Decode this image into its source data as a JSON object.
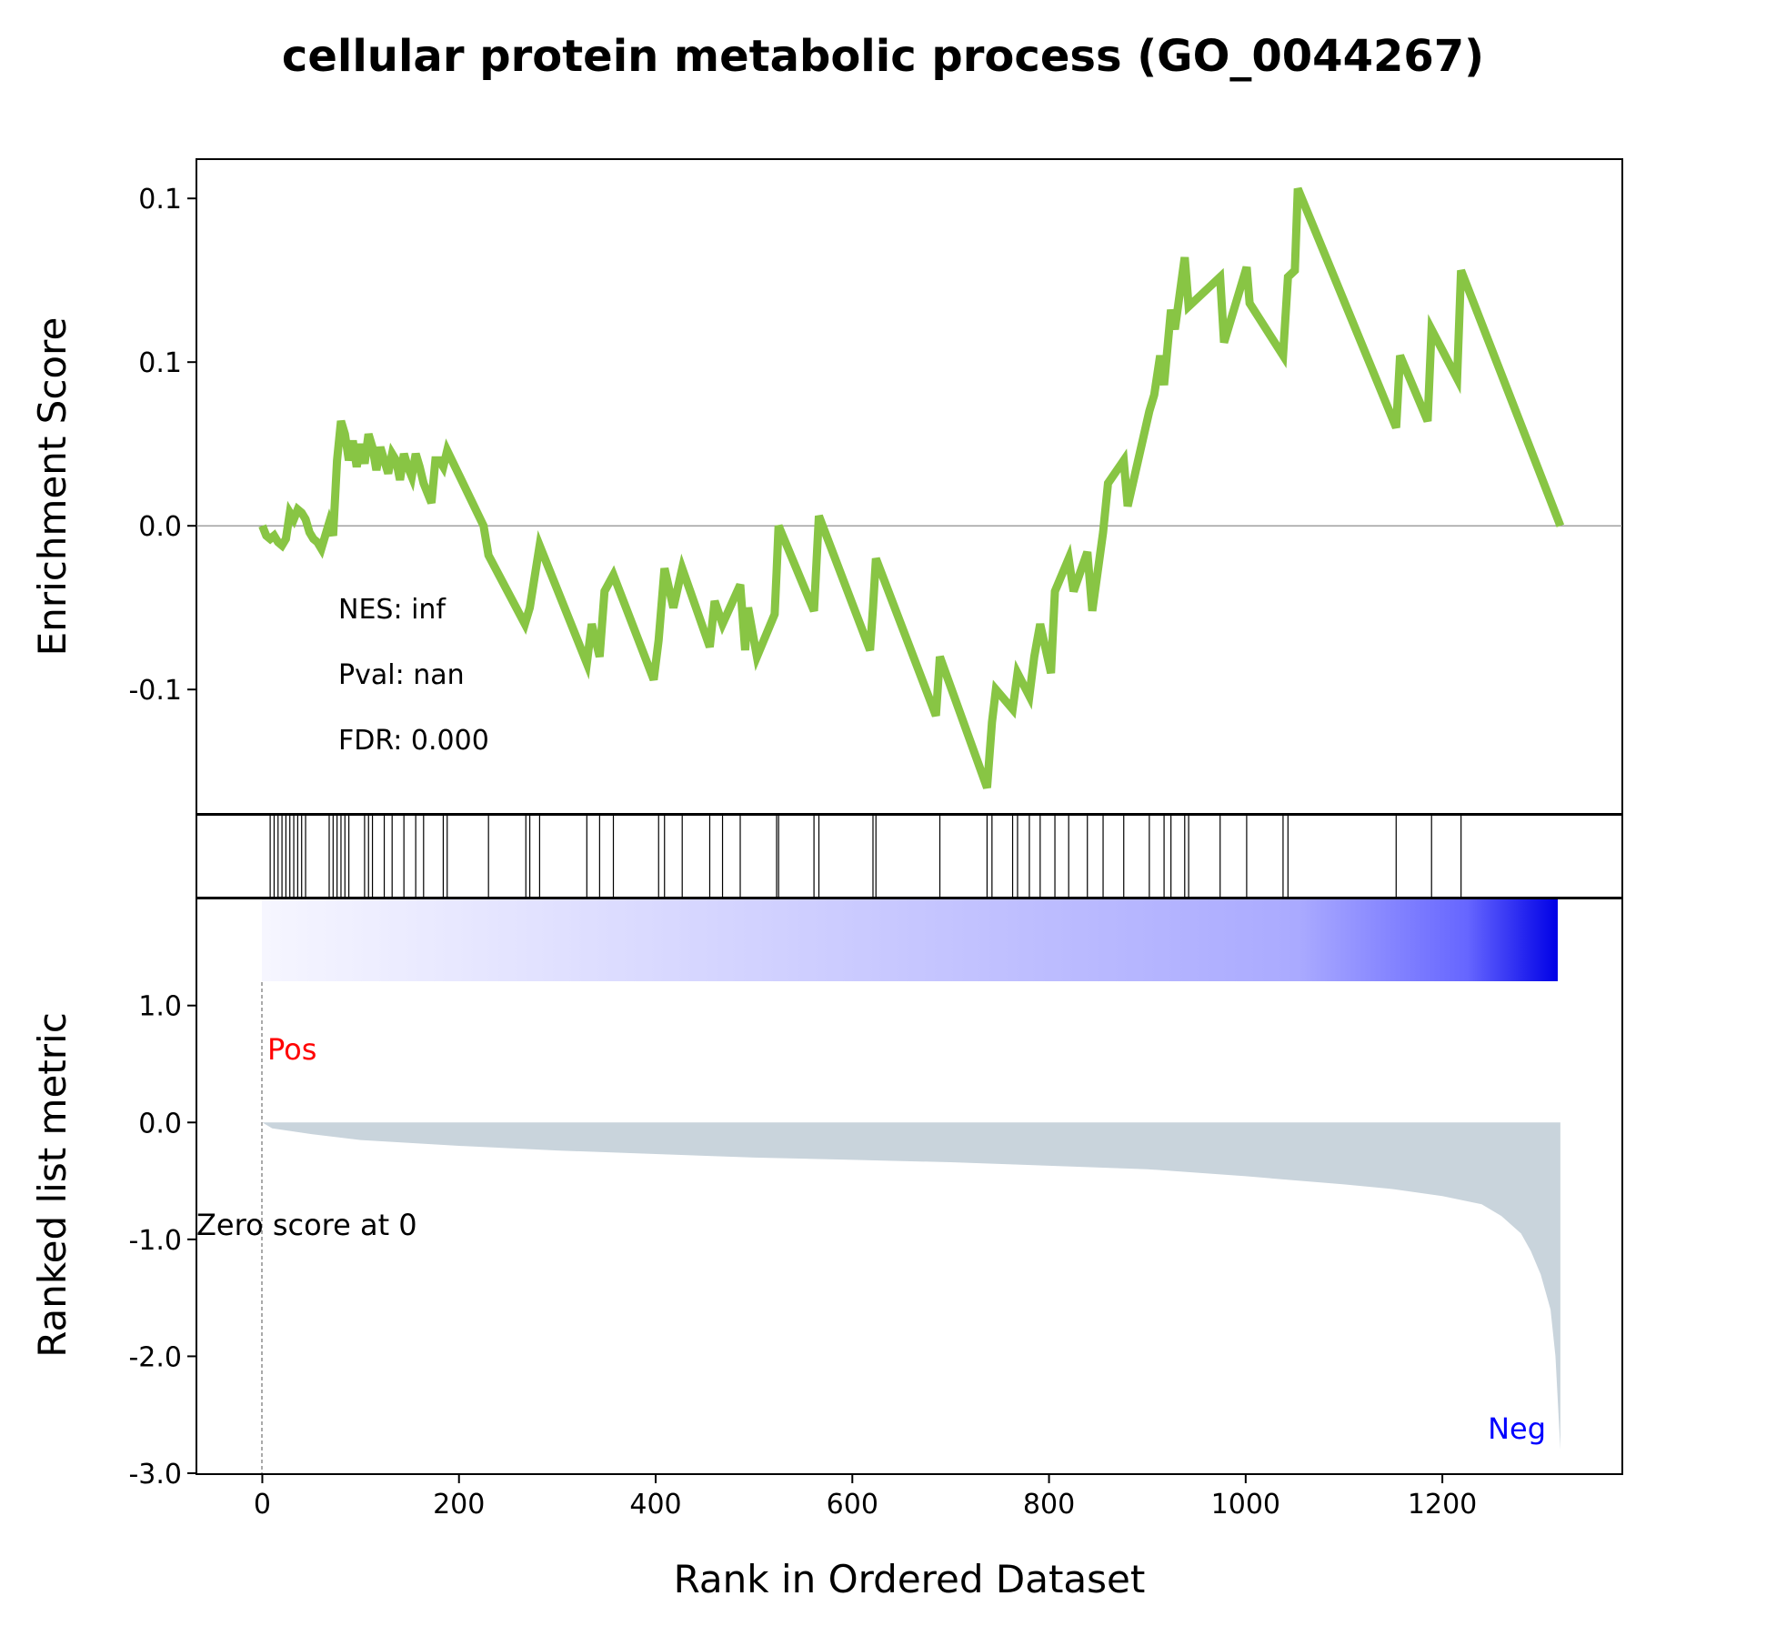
{
  "title": "cellular protein metabolic process (GO_0044267)",
  "colors": {
    "es_line": "#88c544",
    "ranked_fill": "#c9d4dc",
    "pos_label": "#ff0000",
    "neg_label": "#0000ff",
    "zero_line": "#808080",
    "gradient_start": "#f6f6ff",
    "gradient_mid": "#aaaaff",
    "gradient_end": "#0000e6"
  },
  "stats": {
    "nes": "NES: inf",
    "pval": "Pval: nan",
    "fdr": "FDR: 0.000"
  },
  "labels": {
    "pos": "Pos",
    "neg": "Neg",
    "zero_score": "Zero score at 0"
  },
  "chart_data": [
    {
      "type": "line",
      "name": "enrichment-score",
      "ylabel": "Enrichment Score",
      "y_ticks": [
        {
          "value": 0.1,
          "label": "0.1"
        },
        {
          "value": 0.05,
          "label": "0.1"
        },
        {
          "value": 0.0,
          "label": "0.0"
        },
        {
          "value": -0.05,
          "label": "-0.1"
        }
      ],
      "xlim": [
        -67,
        1383
      ],
      "ylim": [
        -0.088,
        0.112
      ],
      "x": [
        0,
        4,
        8,
        12,
        16,
        20,
        24,
        28,
        32,
        36,
        40,
        44,
        48,
        52,
        56,
        60,
        64,
        68,
        72,
        76,
        80,
        84,
        88,
        92,
        96,
        100,
        104,
        108,
        112,
        116,
        120,
        124,
        128,
        132,
        136,
        140,
        144,
        148,
        152,
        156,
        160,
        164,
        168,
        172,
        176,
        180,
        184,
        188,
        225,
        230,
        267,
        272,
        282,
        330,
        335,
        343,
        348,
        357,
        398,
        403,
        409,
        418,
        427,
        455,
        460,
        468,
        486,
        491,
        494,
        503,
        521,
        523,
        525,
        561,
        566,
        618,
        621,
        624,
        685,
        689,
        737,
        742,
        746,
        763,
        768,
        780,
        785,
        791,
        802,
        806,
        820,
        825,
        839,
        844,
        855,
        860,
        876,
        880,
        902,
        907,
        913,
        917,
        924,
        928,
        938,
        942,
        974,
        978,
        1001,
        1004,
        1038,
        1043,
        1050,
        1053,
        1153,
        1157,
        1185,
        1189,
        1215,
        1219,
        1320
      ],
      "y": [
        0.0,
        -0.003,
        -0.004,
        -0.003,
        -0.005,
        -0.006,
        -0.004,
        0.004,
        0.002,
        0.005,
        0.004,
        0.002,
        -0.002,
        -0.004,
        -0.005,
        -0.007,
        -0.003,
        0.001,
        -0.003,
        0.02,
        0.032,
        0.028,
        0.02,
        0.026,
        0.018,
        0.025,
        0.019,
        0.028,
        0.024,
        0.017,
        0.024,
        0.02,
        0.016,
        0.022,
        0.02,
        0.014,
        0.022,
        0.018,
        0.015,
        0.022,
        0.018,
        0.013,
        0.01,
        0.007,
        0.02,
        0.02,
        0.018,
        0.023,
        0.0,
        -0.009,
        -0.03,
        -0.025,
        -0.006,
        -0.042,
        -0.03,
        -0.04,
        -0.02,
        -0.015,
        -0.047,
        -0.035,
        -0.013,
        -0.025,
        -0.013,
        -0.037,
        -0.023,
        -0.03,
        -0.018,
        -0.038,
        -0.025,
        -0.04,
        -0.027,
        -0.014,
        0.0,
        -0.026,
        0.003,
        -0.038,
        -0.025,
        -0.01,
        -0.058,
        -0.04,
        -0.08,
        -0.06,
        -0.05,
        -0.056,
        -0.045,
        -0.052,
        -0.04,
        -0.03,
        -0.045,
        -0.02,
        -0.01,
        -0.02,
        -0.008,
        -0.026,
        -0.002,
        0.013,
        0.02,
        0.006,
        0.035,
        0.04,
        0.052,
        0.043,
        0.066,
        0.06,
        0.082,
        0.067,
        0.076,
        0.056,
        0.079,
        0.068,
        0.052,
        0.076,
        0.078,
        0.103,
        0.03,
        0.052,
        0.032,
        0.06,
        0.045,
        0.078,
        0.0
      ]
    },
    {
      "type": "event-lines",
      "name": "hit-positions",
      "x": [
        8,
        12,
        16,
        20,
        24,
        28,
        32,
        36,
        40,
        44,
        68,
        72,
        76,
        80,
        84,
        88,
        104,
        108,
        112,
        124,
        132,
        144,
        156,
        164,
        184,
        188,
        230,
        268,
        272,
        282,
        330,
        343,
        357,
        403,
        409,
        427,
        455,
        468,
        486,
        523,
        525,
        561,
        566,
        621,
        624,
        689,
        737,
        742,
        763,
        768,
        780,
        791,
        806,
        820,
        839,
        855,
        876,
        902,
        917,
        924,
        938,
        942,
        974,
        1001,
        1038,
        1043,
        1153,
        1189,
        1219
      ]
    },
    {
      "type": "area",
      "name": "ranked-list-metric",
      "ylabel": "Ranked list metric",
      "xlabel": "Rank in Ordered Dataset",
      "x_ticks": [
        0,
        200,
        400,
        600,
        800,
        1000,
        1200
      ],
      "y_ticks": [
        {
          "value": 1.0,
          "label": "1.0"
        },
        {
          "value": 0.0,
          "label": "0.0"
        },
        {
          "value": -1.0,
          "label": "-1.0"
        },
        {
          "value": -2.0,
          "label": "-2.0"
        },
        {
          "value": -3.0,
          "label": "-3.0"
        }
      ],
      "xlim": [
        -67,
        1383
      ],
      "ylim": [
        -3.0,
        1.2
      ],
      "x": [
        0,
        10,
        50,
        100,
        200,
        300,
        400,
        500,
        600,
        700,
        800,
        900,
        1000,
        1100,
        1150,
        1200,
        1240,
        1260,
        1280,
        1290,
        1300,
        1310,
        1315,
        1320
      ],
      "y": [
        0.0,
        -0.05,
        -0.1,
        -0.15,
        -0.2,
        -0.24,
        -0.27,
        -0.3,
        -0.32,
        -0.34,
        -0.37,
        -0.4,
        -0.46,
        -0.53,
        -0.57,
        -0.63,
        -0.7,
        -0.8,
        -0.95,
        -1.1,
        -1.3,
        -1.6,
        -2.0,
        -2.8
      ]
    }
  ]
}
